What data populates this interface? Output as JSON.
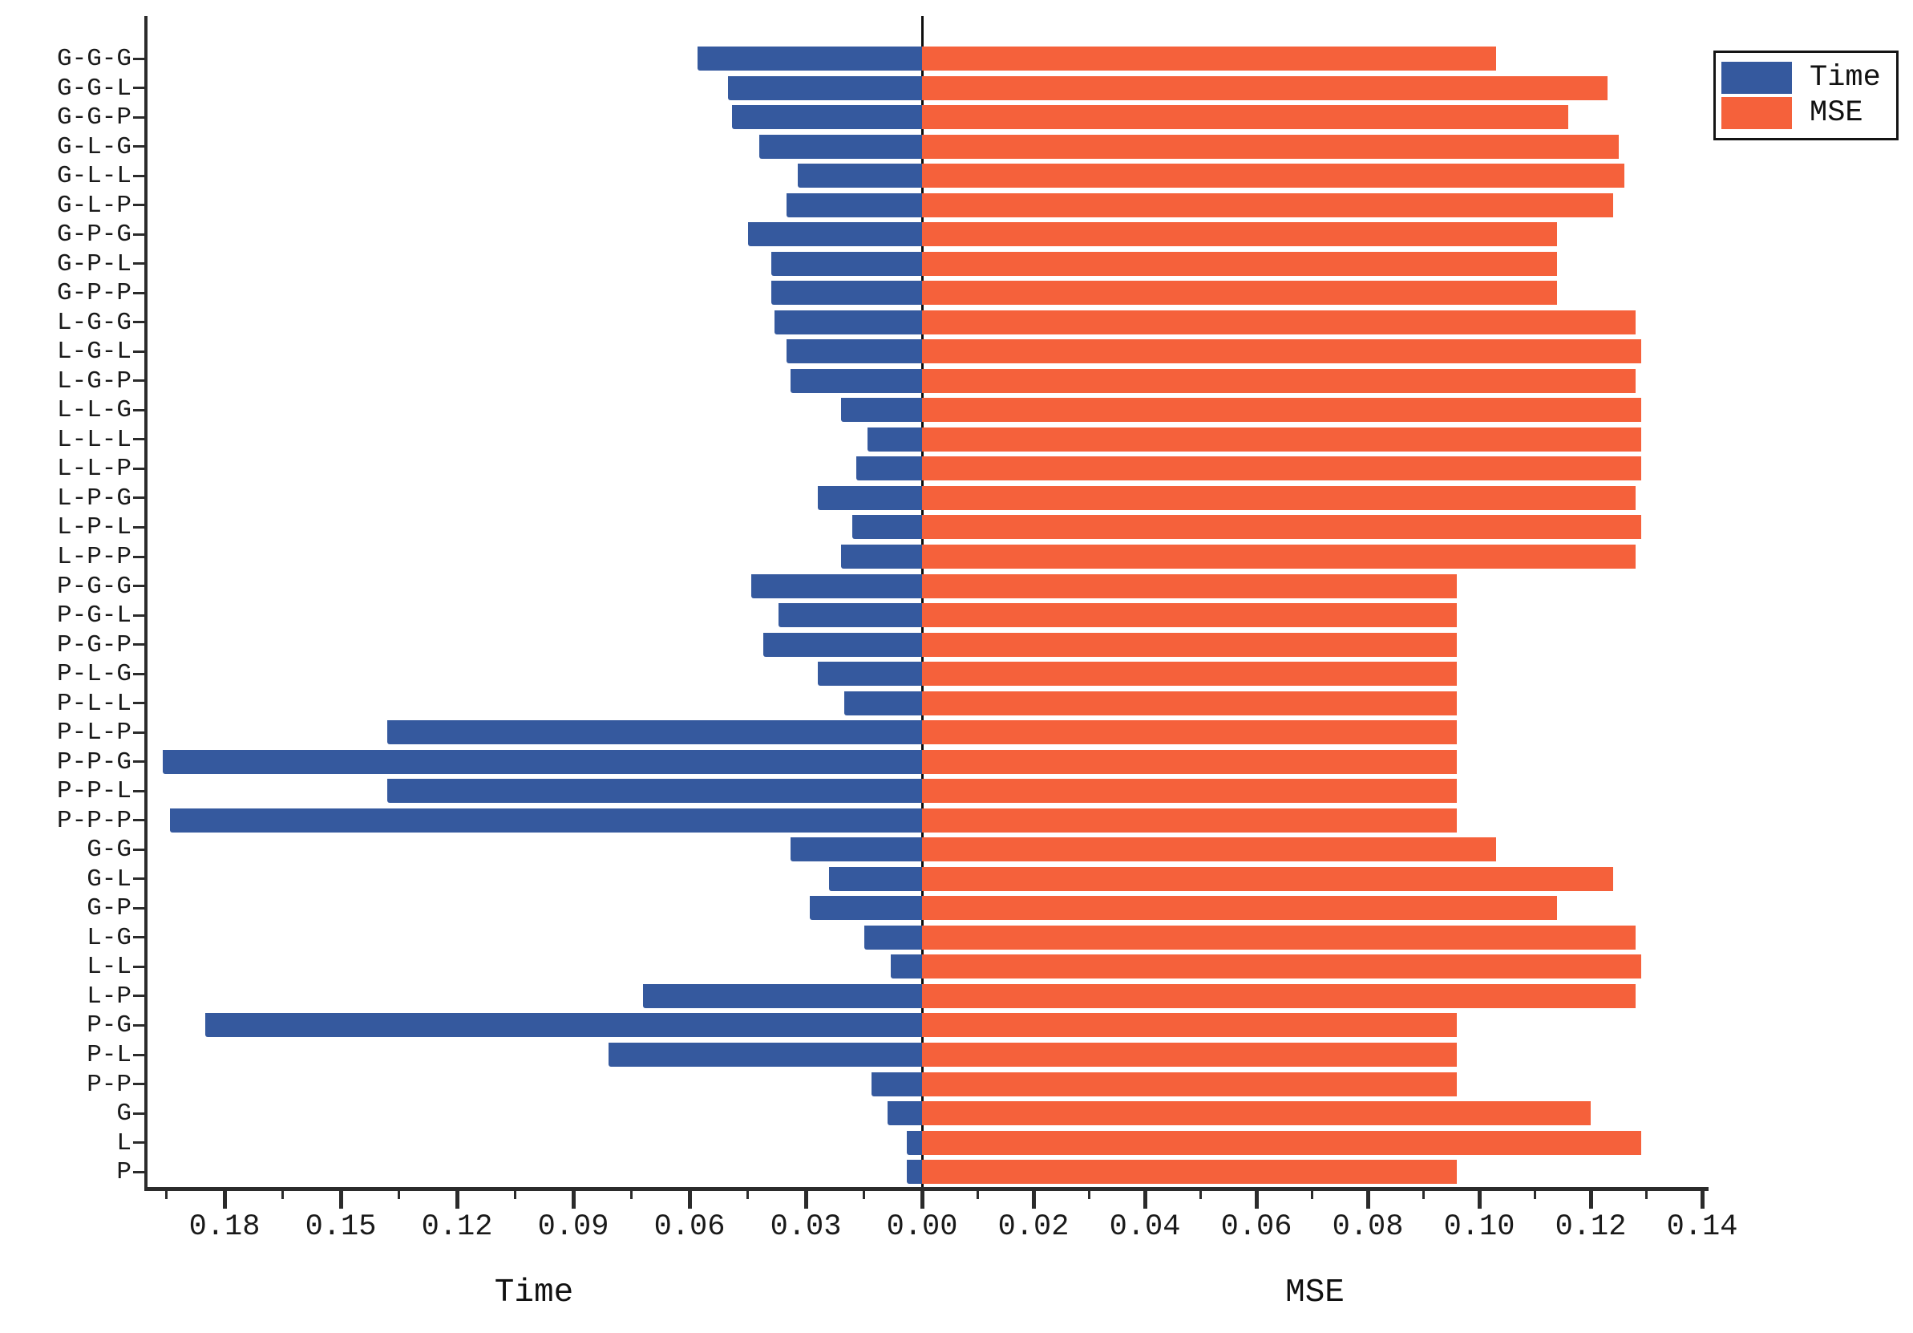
{
  "chart_data": {
    "type": "bar",
    "subtype": "diverging-horizontal-tornado",
    "grid": false,
    "background": "#ffffff",
    "categories": [
      "G-G-G",
      "G-G-L",
      "G-G-P",
      "G-L-G",
      "G-L-L",
      "G-L-P",
      "G-P-G",
      "G-P-L",
      "G-P-P",
      "L-G-G",
      "L-G-L",
      "L-G-P",
      "L-L-G",
      "L-L-L",
      "L-L-P",
      "L-P-G",
      "L-P-L",
      "L-P-P",
      "P-G-G",
      "P-G-L",
      "P-G-P",
      "P-L-G",
      "P-L-L",
      "P-L-P",
      "P-P-G",
      "P-P-L",
      "P-P-P",
      "G-G",
      "G-L",
      "G-P",
      "L-G",
      "L-L",
      "L-P",
      "P-G",
      "P-L",
      "P-P",
      "G",
      "L",
      "P"
    ],
    "series": [
      {
        "name": "Time",
        "axis": "left",
        "color": "#35599e",
        "values": [
          0.058,
          0.05,
          0.049,
          0.042,
          0.032,
          0.035,
          0.045,
          0.039,
          0.039,
          0.038,
          0.035,
          0.034,
          0.021,
          0.014,
          0.017,
          0.027,
          0.018,
          0.021,
          0.044,
          0.037,
          0.041,
          0.027,
          0.02,
          0.138,
          0.196,
          0.138,
          0.194,
          0.034,
          0.024,
          0.029,
          0.015,
          0.008,
          0.072,
          0.185,
          0.081,
          0.013,
          0.009,
          0.004,
          0.004
        ]
      },
      {
        "name": "MSE",
        "axis": "right",
        "color": "#f5613b",
        "values": [
          0.103,
          0.123,
          0.116,
          0.125,
          0.126,
          0.124,
          0.114,
          0.114,
          0.114,
          0.128,
          0.129,
          0.128,
          0.129,
          0.129,
          0.129,
          0.128,
          0.129,
          0.128,
          0.096,
          0.096,
          0.096,
          0.096,
          0.096,
          0.096,
          0.096,
          0.096,
          0.096,
          0.103,
          0.124,
          0.114,
          0.128,
          0.129,
          0.128,
          0.096,
          0.096,
          0.096,
          0.12,
          0.129,
          0.096
        ]
      }
    ],
    "left_axis": {
      "label": "Time",
      "range": [
        0,
        0.2007
      ],
      "major_tick_labels": [
        "0.18",
        "0.15",
        "0.12",
        "0.09",
        "0.06",
        "0.03",
        "0.00"
      ],
      "major_tick_values": [
        0.18,
        0.15,
        0.12,
        0.09,
        0.06,
        0.03,
        0.0
      ],
      "minor_tick_values": [
        0.195,
        0.165,
        0.135,
        0.105,
        0.075,
        0.045,
        0.015
      ]
    },
    "right_axis": {
      "label": "MSE",
      "range": [
        0,
        0.1409
      ],
      "major_tick_labels": [
        "0.02",
        "0.04",
        "0.06",
        "0.08",
        "0.10",
        "0.12",
        "0.14"
      ],
      "major_tick_values": [
        0.02,
        0.04,
        0.06,
        0.08,
        0.1,
        0.12,
        0.14
      ],
      "minor_tick_values": [
        0.01,
        0.03,
        0.05,
        0.07,
        0.09,
        0.11,
        0.13
      ]
    },
    "legend": {
      "position": "top-right",
      "entries": [
        {
          "label": "Time",
          "color": "#35599e"
        },
        {
          "label": "MSE",
          "color": "#f5613b"
        }
      ]
    }
  }
}
